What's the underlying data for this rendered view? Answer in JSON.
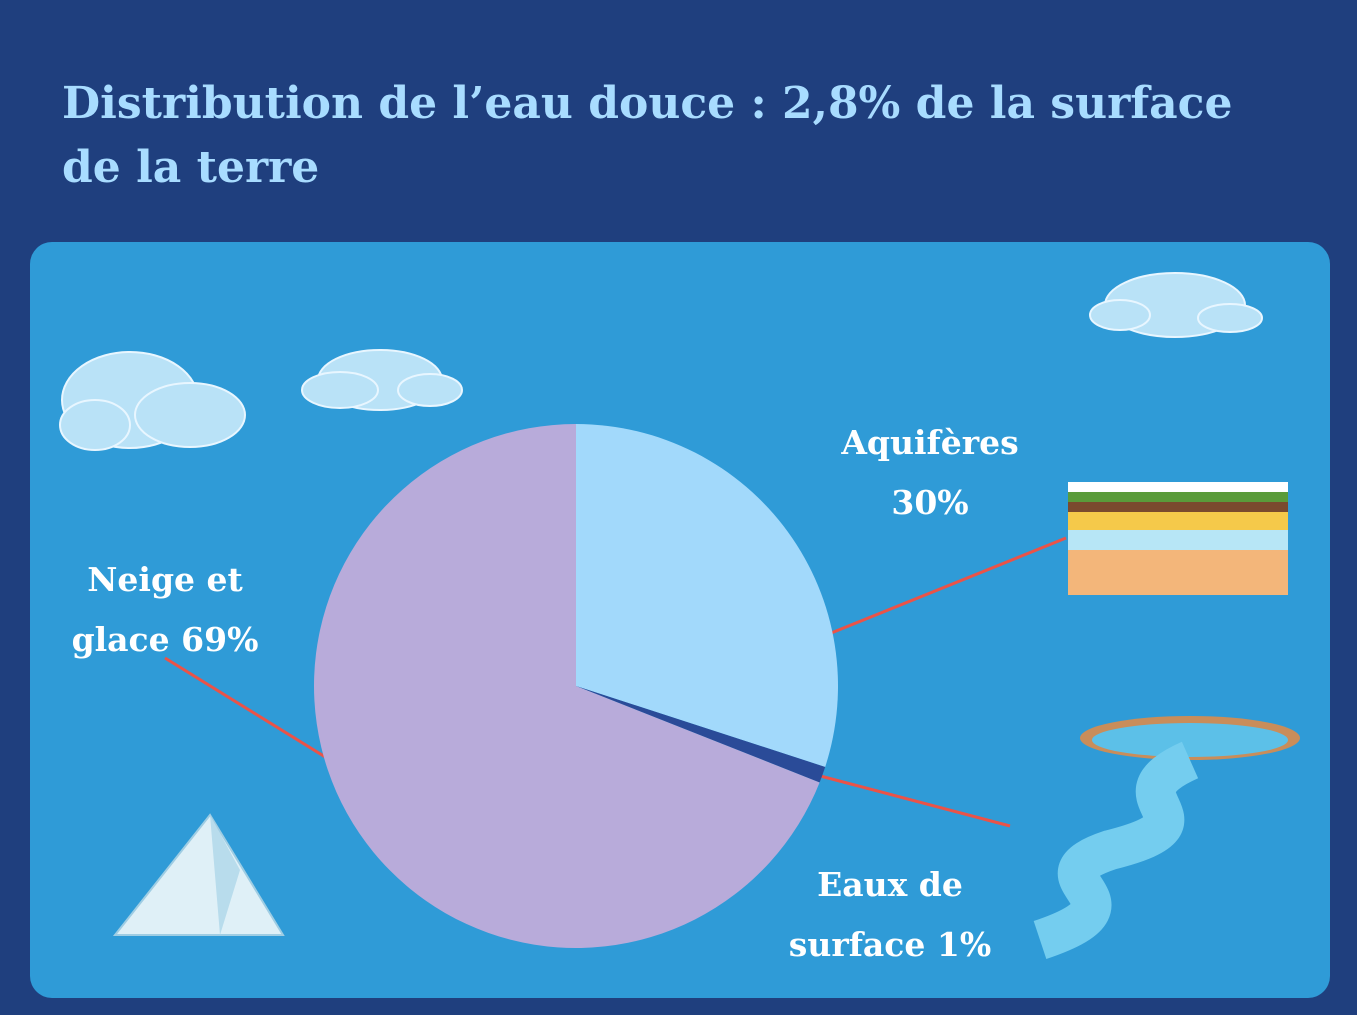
{
  "chart_data": {
    "type": "pie",
    "title": "Distribution de l’eau  douce :  2,8% de la surface de la terre",
    "categories": [
      "Aquifères",
      "Eaux de surface",
      "Neige et glace"
    ],
    "values": [
      30,
      1,
      69
    ],
    "value_labels": [
      "30%",
      "1%",
      "69%"
    ],
    "colors": [
      "#a2d9fb",
      "#2a4b98",
      "#b8abda"
    ]
  }
}
